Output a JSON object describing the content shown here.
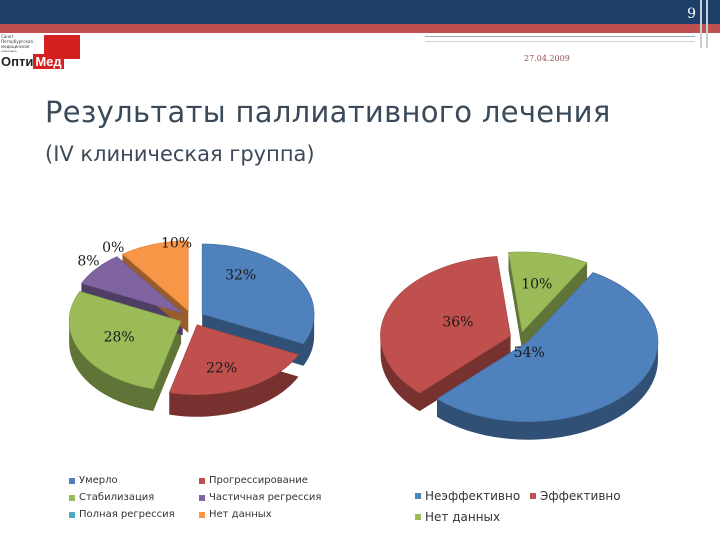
{
  "slide": {
    "page_number": "9",
    "date": "27.04.2009",
    "title": "Результаты паллиативного лечения",
    "subtitle": "(IV клиническая группа)",
    "logo": {
      "small_text": "Санкт-Петербургская медицинская научно-практическая ассоциация",
      "name_part1": "Опти",
      "name_part2": "Мед"
    }
  },
  "colors": {
    "header": "#1f3f6b",
    "accent": "#c0504d",
    "blue": "#4f81bd",
    "red": "#c0504d",
    "green": "#9bbb59",
    "purple": "#8064a2",
    "teal": "#4bacc6",
    "orange": "#f79646"
  },
  "chart_data": [
    {
      "type": "pie",
      "title": "",
      "slices": [
        {
          "name": "Умерло",
          "value": 32,
          "label": "32%",
          "color": "#4f81bd"
        },
        {
          "name": "Прогрессирование",
          "value": 22,
          "label": "22%",
          "color": "#c0504d"
        },
        {
          "name": "Стабилизация",
          "value": 28,
          "label": "28%",
          "color": "#9bbb59"
        },
        {
          "name": "Частичная регрессия",
          "value": 8,
          "label": "8%",
          "color": "#8064a2"
        },
        {
          "name": "Полная регрессия",
          "value": 0,
          "label": "0%",
          "color": "#4bacc6"
        },
        {
          "name": "Нет данных",
          "value": 10,
          "label": "10%",
          "color": "#f79646"
        }
      ],
      "legend_position": "bottom"
    },
    {
      "type": "pie",
      "title": "",
      "slices": [
        {
          "name": "Неэффективно",
          "value": 54,
          "label": "54%",
          "color": "#4f81bd"
        },
        {
          "name": "Эффективно",
          "value": 36,
          "label": "36%",
          "color": "#c0504d"
        },
        {
          "name": "Нет данных",
          "value": 10,
          "label": "10%",
          "color": "#9bbb59"
        }
      ],
      "legend_position": "bottom"
    }
  ]
}
